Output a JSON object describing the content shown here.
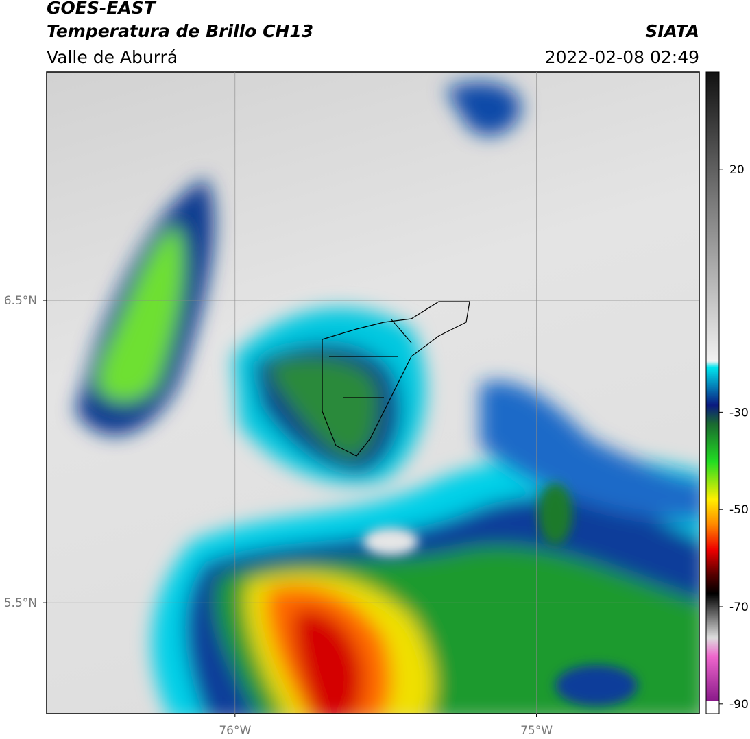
{
  "header": {
    "title": "GOES-EAST",
    "subtitle": "Temperatura de Brillo CH13",
    "region": "Valle de Aburrá",
    "source": "SIATA",
    "timestamp": "2022-02-08 02:49"
  },
  "map": {
    "xlim": [
      -76.625,
      -74.46
    ],
    "ylim": [
      5.133,
      7.255
    ],
    "xticks": [
      {
        "value": -76,
        "label": "76°W"
      },
      {
        "value": -75,
        "label": "75°W"
      }
    ],
    "yticks": [
      {
        "value": 6.5,
        "label": "6.5°N"
      },
      {
        "value": 5.5,
        "label": "5.5°N"
      }
    ],
    "grid": true
  },
  "colorbar": {
    "lim": [
      -92,
      40
    ],
    "ticks": [
      20,
      -30,
      -50,
      -70,
      -90
    ]
  }
}
